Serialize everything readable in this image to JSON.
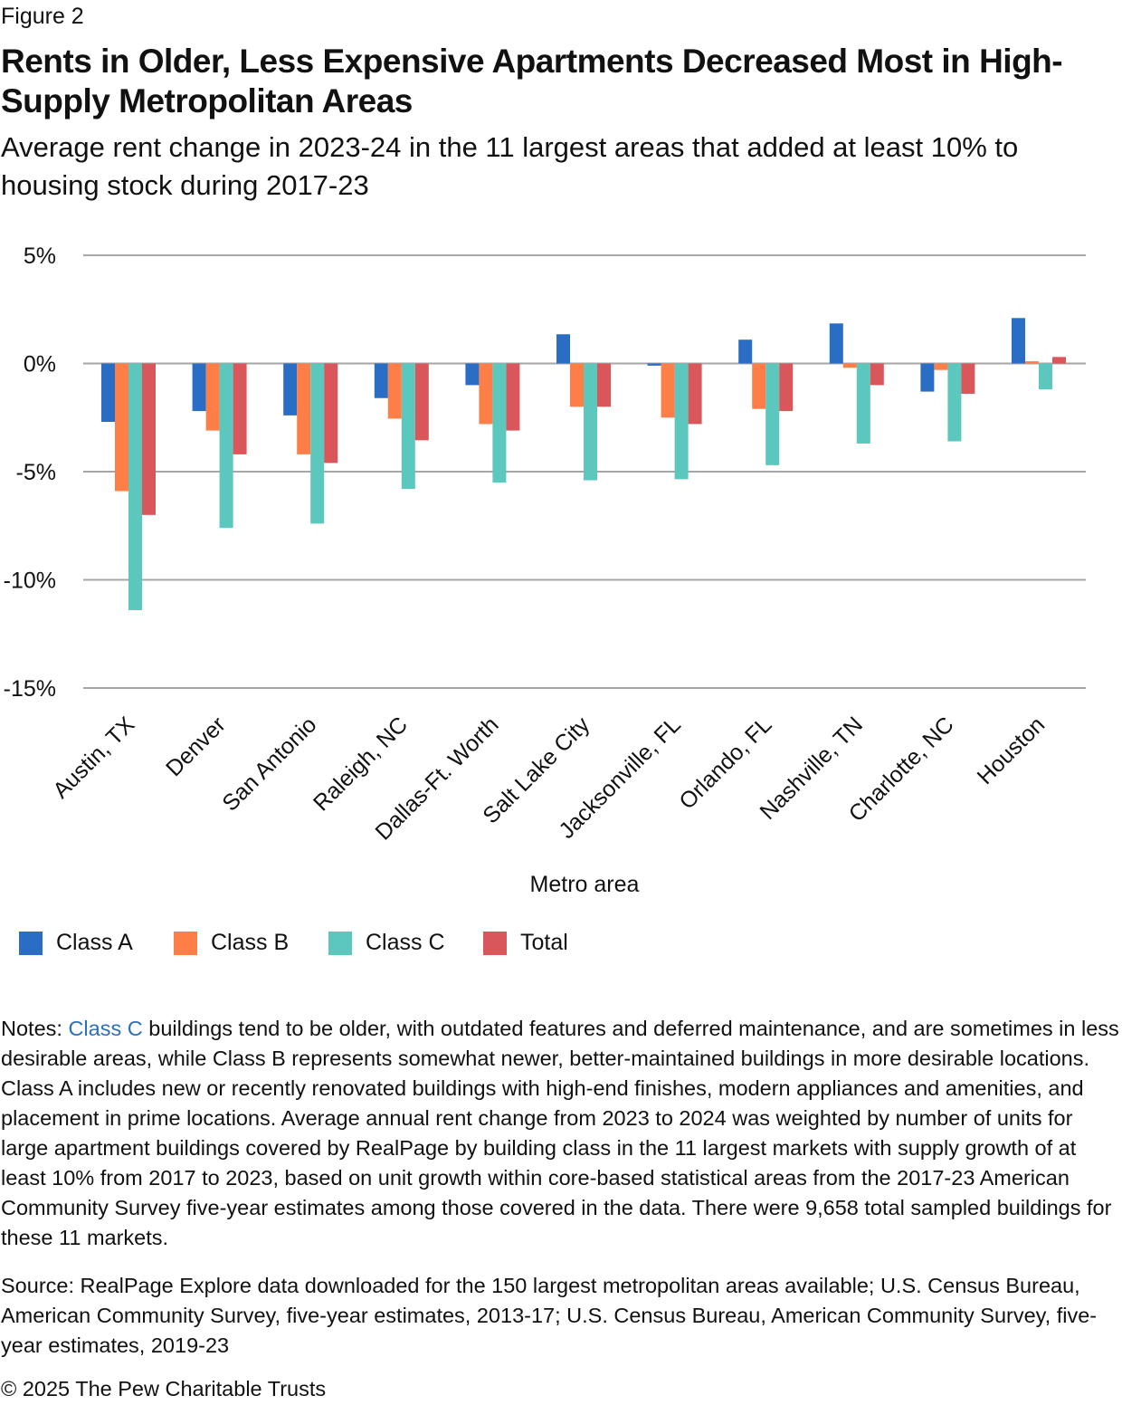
{
  "figure_label": "Figure 2",
  "notes": {
    "prefix": "Notes: ",
    "link_text": "Class C",
    "text": " buildings tend to be older, with outdated features and deferred maintenance, and are sometimes in less desirable areas, while Class B represents somewhat newer, better-maintained buildings in more desirable locations. Class A includes new or recently renovated buildings with high-end finishes, modern appliances and amenities, and placement in prime locations. Average annual rent change from 2023 to 2024 was weighted by number of units for large apartment buildings covered by RealPage by building class in the 11 largest markets with supply growth of at least 10% from 2017 to 2023, based on unit growth within core-based statistical areas from the 2017-23 American Community Survey five-year estimates among those covered in the data. There were 9,658 total sampled buildings for these 11 markets."
  },
  "source": "Source: RealPage Explore data downloaded for the 150 largest metropolitan areas available; U.S. Census Bureau, American Community Survey, five-year estimates, 2013-17; U.S. Census Bureau, American Community Survey, five-year estimates, 2019-23",
  "copyright": "© 2025 The Pew Charitable Trusts",
  "chart_data": {
    "type": "bar",
    "title": "Rents in Older, Less Expensive Apartments Decreased Most in High-Supply Metropolitan Areas",
    "subtitle": "Average rent change in 2023-24 in the 11 largest areas that added at least 10% to housing stock during 2017-23",
    "xlabel": "Metro area",
    "ylabel": "",
    "ylim": [
      -15,
      5
    ],
    "yticks": [
      5,
      0,
      -5,
      -10,
      -15
    ],
    "ytick_labels": [
      "5%",
      "0%",
      "-5%",
      "-10%",
      "-15%"
    ],
    "grid": true,
    "legend_position": "bottom-left",
    "categories": [
      "Austin, TX",
      "Denver",
      "San Antonio",
      "Raleigh, NC",
      "Dallas-Ft. Worth",
      "Salt Lake City",
      "Jacksonville, FL",
      "Orlando, FL",
      "Nashville, TN",
      "Charlotte, NC",
      "Houston"
    ],
    "series": [
      {
        "name": "Class A",
        "color": "#2a6dc4",
        "values": [
          -2.7,
          -2.2,
          -2.4,
          -1.6,
          -1.0,
          1.35,
          -0.1,
          1.1,
          1.85,
          -1.3,
          2.1
        ]
      },
      {
        "name": "Class B",
        "color": "#fd7f47",
        "values": [
          -5.9,
          -3.1,
          -4.2,
          -2.55,
          -2.8,
          -2.0,
          -2.5,
          -2.1,
          -0.2,
          -0.3,
          0.1
        ]
      },
      {
        "name": "Class C",
        "color": "#5bc7bd",
        "values": [
          -11.4,
          -7.6,
          -7.4,
          -5.8,
          -5.5,
          -5.4,
          -5.35,
          -4.7,
          -3.7,
          -3.6,
          -1.2
        ]
      },
      {
        "name": "Total",
        "color": "#d9565a",
        "values": [
          -7.0,
          -4.2,
          -4.6,
          -3.55,
          -3.1,
          -2.0,
          -2.8,
          -2.2,
          -1.0,
          -1.4,
          0.3
        ]
      }
    ]
  }
}
